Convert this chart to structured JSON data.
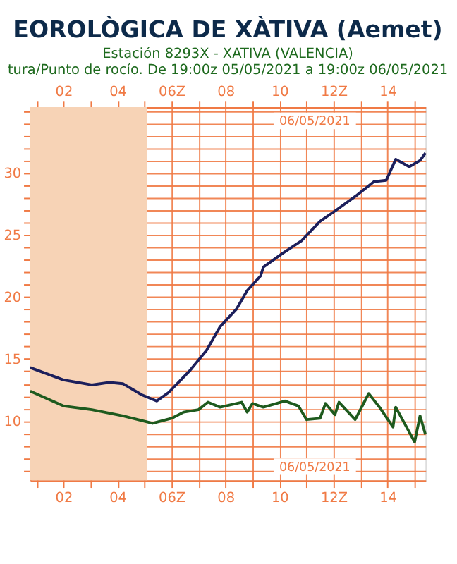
{
  "chart_data": {
    "type": "line",
    "title": "EOROLÒGICA DE XÀTIVA (Aemet)",
    "subtitle": "Estación 8293X - XATIVA (VALENCIA)\ntura/Punto de rocío. De 19:00z 05/05/2021 a 19:00z 06/05/2021",
    "annotations": [
      "06/05/2021",
      "06/05/2021"
    ],
    "xlim": [
      0.77,
      15.4
    ],
    "xticks": [
      {
        "value": 1,
        "label": null
      },
      {
        "value": 2,
        "label": "02"
      },
      {
        "value": 3,
        "label": null
      },
      {
        "value": 4,
        "label": "04"
      },
      {
        "value": 5,
        "label": null
      },
      {
        "value": 6,
        "label": "06Z"
      },
      {
        "value": 7,
        "label": null
      },
      {
        "value": 8,
        "label": "08"
      },
      {
        "value": 9,
        "label": null
      },
      {
        "value": 10,
        "label": "10"
      },
      {
        "value": 11,
        "label": null
      },
      {
        "value": 12,
        "label": "12Z"
      },
      {
        "value": 13,
        "label": null
      },
      {
        "value": 14,
        "label": "14"
      },
      {
        "value": 15,
        "label": null
      }
    ],
    "x2lim": [
      0.77,
      15.4
    ],
    "x2ticks": [
      {
        "value": 1,
        "label": null
      },
      {
        "value": 2,
        "label": "02"
      },
      {
        "value": 3,
        "label": null
      },
      {
        "value": 4,
        "label": "04"
      },
      {
        "value": 5,
        "label": null
      },
      {
        "value": 6,
        "label": "06Z"
      },
      {
        "value": 7,
        "label": null
      },
      {
        "value": 8,
        "label": "08"
      },
      {
        "value": 9,
        "label": null
      },
      {
        "value": 10,
        "label": "10"
      },
      {
        "value": 11,
        "label": null
      },
      {
        "value": 12,
        "label": "12Z"
      },
      {
        "value": 13,
        "label": null
      },
      {
        "value": 14,
        "label": "14"
      },
      {
        "value": 15,
        "label": null
      }
    ],
    "ylim": [
      5.2,
      35.3
    ],
    "yticks": [
      {
        "value": 6,
        "label": null
      },
      {
        "value": 7,
        "label": null
      },
      {
        "value": 8,
        "label": null
      },
      {
        "value": 9,
        "label": null
      },
      10,
      {
        "value": 11,
        "label": null
      },
      {
        "value": 12,
        "label": null
      },
      {
        "value": 13,
        "label": null
      },
      {
        "value": 14,
        "label": null
      },
      15,
      {
        "value": 16,
        "label": null
      },
      {
        "value": 17,
        "label": null
      },
      {
        "value": 18,
        "label": null
      },
      {
        "value": 19,
        "label": null
      },
      20,
      {
        "value": 21,
        "label": null
      },
      {
        "value": 22,
        "label": null
      },
      {
        "value": 23,
        "label": null
      },
      {
        "value": 24,
        "label": null
      },
      25,
      {
        "value": 26,
        "label": null
      },
      {
        "value": 27,
        "label": null
      },
      {
        "value": 28,
        "label": null
      },
      {
        "value": 29,
        "label": null
      },
      30,
      {
        "value": 31,
        "label": null
      },
      {
        "value": 32,
        "label": null
      },
      {
        "value": 33,
        "label": null
      },
      {
        "value": 34,
        "label": null
      },
      {
        "value": 35,
        "label": null
      }
    ],
    "grid": true,
    "legend": false,
    "marker": "none",
    "line_style": "solid",
    "bands": [
      {
        "axis": "x",
        "from": 0.77,
        "to": 5.1,
        "label": null,
        "color": "#f7d3b6"
      }
    ],
    "series": [
      {
        "color": "#1c1f5c",
        "x": [
          0.77,
          2,
          3.05,
          3.7,
          4.2,
          4.9,
          5.45,
          5.9,
          6.7,
          7.3,
          7.8,
          8.4,
          8.8,
          9.3,
          9.4,
          10.1,
          10.8,
          11.5,
          12.1,
          12.8,
          13.5,
          13.95,
          14.3,
          14.8,
          15.2,
          15.4
        ],
        "values": [
          14.3,
          13.3,
          12.9,
          13.1,
          13.0,
          12.1,
          11.6,
          12.3,
          14.1,
          15.7,
          17.6,
          19.0,
          20.5,
          21.7,
          22.4,
          23.5,
          24.5,
          26.1,
          27.0,
          28.1,
          29.3,
          29.4,
          31.1,
          30.5,
          31.0,
          31.6
        ]
      },
      {
        "color": "#1e5a1e",
        "x": [
          0.77,
          2,
          3.05,
          4.2,
          5.3,
          6.0,
          6.45,
          7.0,
          7.35,
          7.8,
          8.6,
          8.8,
          9.0,
          9.4,
          10.2,
          10.7,
          11.0,
          11.5,
          11.7,
          12.05,
          12.2,
          12.8,
          13.3,
          13.7,
          14.2,
          14.3,
          15.0,
          15.2,
          15.4
        ],
        "values": [
          12.4,
          11.2,
          10.9,
          10.4,
          9.8,
          10.2,
          10.7,
          10.9,
          11.5,
          11.1,
          11.5,
          10.7,
          11.4,
          11.1,
          11.6,
          11.2,
          10.1,
          10.2,
          11.4,
          10.5,
          11.5,
          10.1,
          12.2,
          11.1,
          9.5,
          11.1,
          8.3,
          10.4,
          8.9
        ]
      }
    ]
  }
}
